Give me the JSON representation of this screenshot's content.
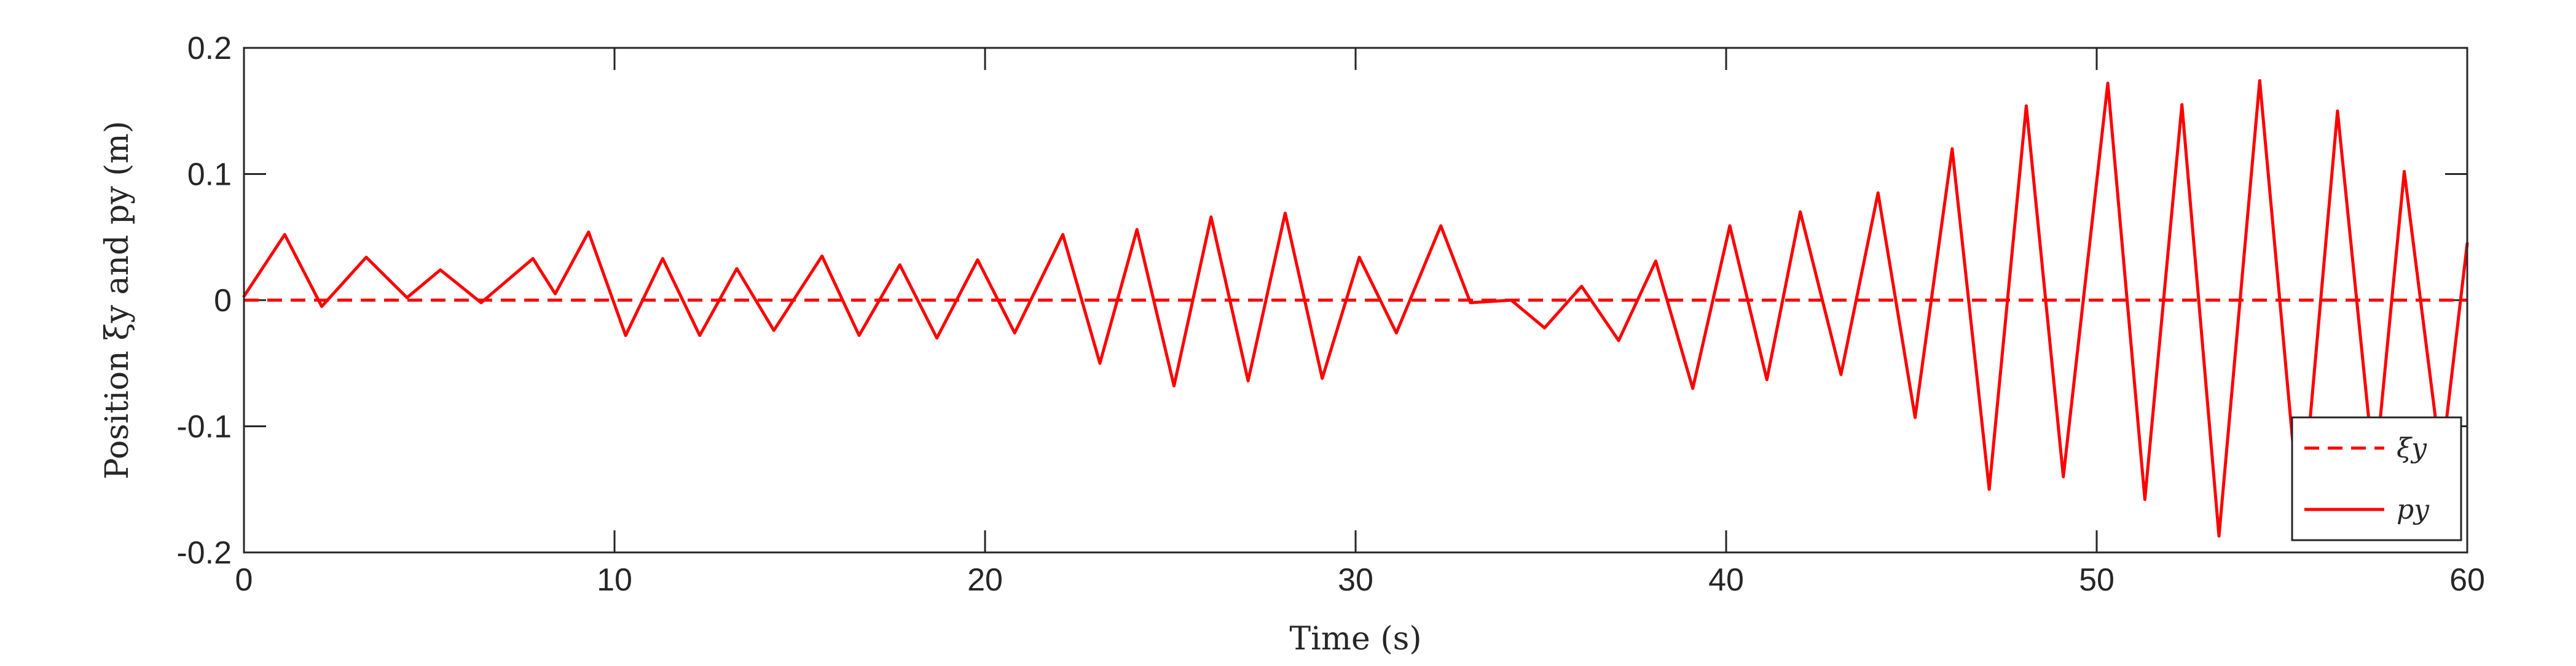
{
  "chart_data": {
    "type": "line",
    "xlabel": "Time (s)",
    "ylabel": "Position ξy and py (m)",
    "xlim": [
      0,
      60
    ],
    "ylim": [
      -0.2,
      0.2
    ],
    "x_ticks": [
      0,
      10,
      20,
      30,
      40,
      50,
      60
    ],
    "x_tick_labels": [
      "0",
      "10",
      "20",
      "30",
      "40",
      "50",
      "60"
    ],
    "y_ticks": [
      -0.2,
      -0.1,
      0,
      0.1,
      0.2
    ],
    "y_tick_labels": [
      "-0.2",
      "-0.1",
      "0",
      "0.1",
      "0.2"
    ],
    "grid": false,
    "legend_position": "bottom-right",
    "series": [
      {
        "name": "ξy",
        "style": "dashed",
        "color": "#ff0000",
        "x": [
          0,
          60
        ],
        "y": [
          0,
          0
        ]
      },
      {
        "name": "py",
        "style": "solid",
        "color": "#ff0000",
        "x": [
          0,
          1.1,
          2.1,
          3.3,
          4.4,
          5.3,
          6.4,
          7.8,
          8.4,
          9.3,
          10.3,
          11.3,
          12.3,
          13.3,
          14.3,
          15.6,
          16.6,
          17.7,
          18.7,
          19.8,
          20.8,
          22.1,
          23.1,
          24.1,
          25.1,
          26.1,
          27.1,
          28.1,
          29.1,
          30.1,
          31.1,
          32.3,
          33.1,
          34.2,
          35.1,
          36.1,
          37.1,
          38.1,
          39.1,
          40.1,
          41.1,
          42.0,
          43.1,
          44.1,
          45.1,
          46.1,
          47.1,
          48.1,
          49.1,
          50.3,
          51.3,
          52.3,
          53.3,
          54.4,
          55.5,
          56.5,
          57.5,
          58.3,
          59.3,
          60.0
        ],
        "y": [
          0.003,
          0.052,
          -0.005,
          0.034,
          0.002,
          0.024,
          -0.002,
          0.033,
          0.005,
          0.054,
          -0.028,
          0.033,
          -0.028,
          0.025,
          -0.024,
          0.035,
          -0.028,
          0.028,
          -0.03,
          0.032,
          -0.026,
          0.052,
          -0.05,
          0.056,
          -0.068,
          0.066,
          -0.064,
          0.069,
          -0.062,
          0.034,
          -0.026,
          0.059,
          -0.002,
          0.0,
          -0.022,
          0.011,
          -0.032,
          0.031,
          -0.07,
          0.059,
          -0.063,
          0.07,
          -0.059,
          0.085,
          -0.093,
          0.12,
          -0.15,
          0.154,
          -0.14,
          0.172,
          -0.158,
          0.155,
          -0.187,
          0.174,
          -0.18,
          0.15,
          -0.14,
          0.102,
          -0.13,
          0.045
        ]
      }
    ]
  },
  "legend": {
    "items": [
      {
        "label": "ξy",
        "style": "dashed"
      },
      {
        "label": "py",
        "style": "solid"
      }
    ]
  }
}
